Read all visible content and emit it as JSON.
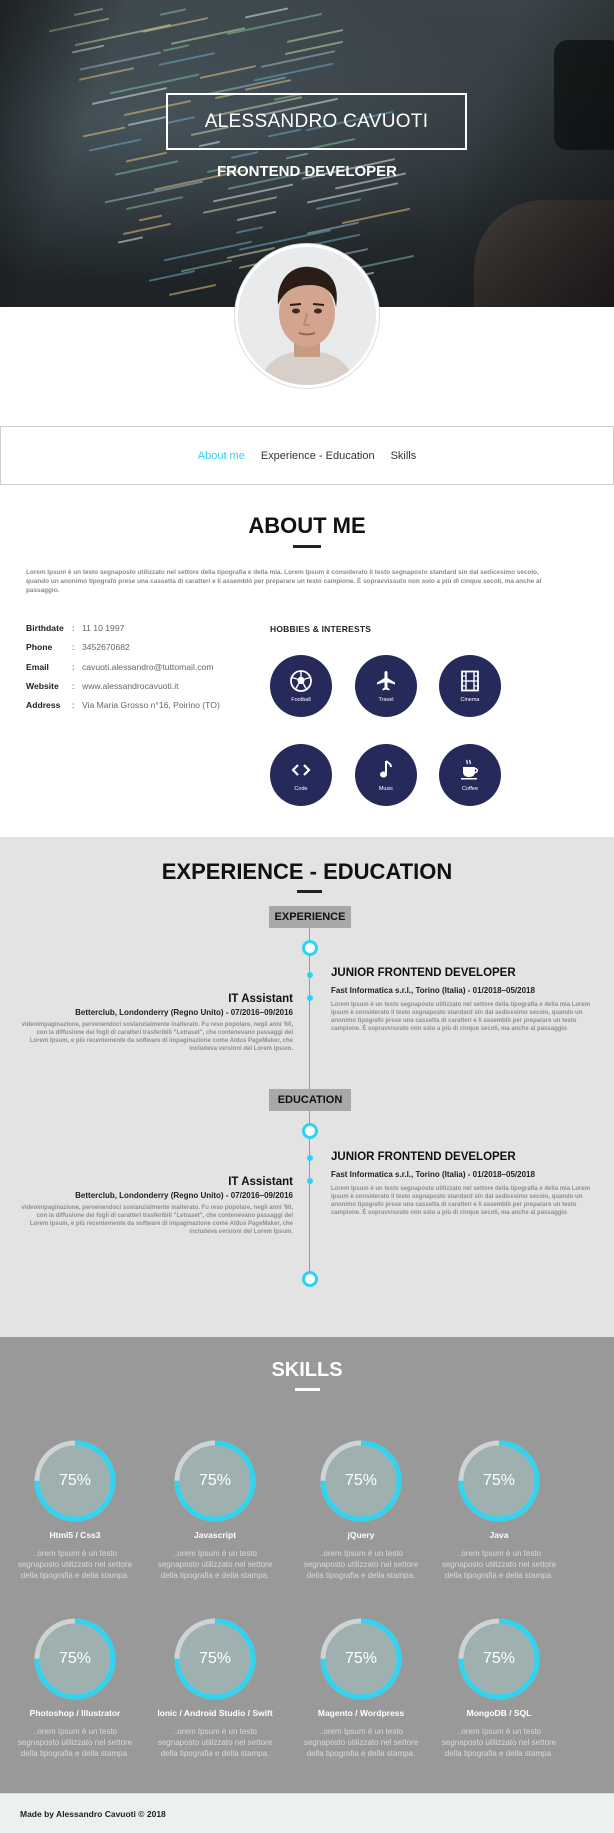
{
  "header": {
    "name": "ALESSANDRO CAVUOTI",
    "role": "FRONTEND DEVELOPER"
  },
  "nav": {
    "items": [
      "About me",
      "Experience - Education",
      "Skills"
    ],
    "active": "About me",
    "active_color": "#2fd4f0"
  },
  "about": {
    "title": "ABOUT ME",
    "text": "Lorem Ipsum è un testo segnaposto utilizzato nel settore della tipografia e della mia. Lorem Ipsum è considerato il testo segnaposto standard sin dal sedicesimo secolo, quando un anonimo tipografo prese una cassetta di caratteri e li assemblò per preparare un testo campione. È sopravvissuto non solo a più di cinque secoli, ma anche al passaggio.",
    "info": [
      {
        "label": "Birthdate",
        "value": "11 10 1997"
      },
      {
        "label": "Phone",
        "value": "3452670682"
      },
      {
        "label": "Email",
        "value": "cavuoti.alessandro@tuttomail.com"
      },
      {
        "label": "Website",
        "value": "www.alessandrocavuoti.it"
      },
      {
        "label": "Address",
        "value": "Via Maria Grosso n°16, Poirino (TO)"
      }
    ],
    "separator": ":",
    "hobbies_title": "HOBBIES & INTERESTS",
    "hobbies": [
      {
        "label": "Football",
        "icon": "football-icon"
      },
      {
        "label": "Travel",
        "icon": "airplane-icon"
      },
      {
        "label": "Cinema",
        "icon": "film-icon"
      },
      {
        "label": "Code",
        "icon": "code-icon"
      },
      {
        "label": "Music",
        "icon": "music-note-icon"
      },
      {
        "label": "Coffee",
        "icon": "coffee-cup-icon"
      }
    ],
    "hobby_color": "#262a5b"
  },
  "experience": {
    "title": "EXPERIENCE - EDUCATION",
    "experience_label": "EXPERIENCE",
    "education_label": "EDUCATION",
    "accent": "#29d5f2",
    "right_jobs": [
      {
        "title": "JUNIOR FRONTEND DEVELOPER",
        "subtitle": "Fast Informatica s.r.l., Torino (Italia) - 01/2018–05/2018",
        "text": "Lorem Ipsum è un testo segnaposto utilizzato nel settore della tipografia e della mia Lorem Ipsum è considerato il testo segnaposto standard sin dal sedicesimo secolo, quando un anonimo tipografo prese una cassetta di caratteri e li assemblò per preparare un testo campione. È sopravvissuto non solo a più di cinque secoli, ma anche al passaggio"
      },
      {
        "title": "JUNIOR FRONTEND DEVELOPER",
        "subtitle": "Fast Informatica s.r.l., Torino (Italia) - 01/2018–05/2018",
        "text": "Lorem Ipsum è un testo segnaposto utilizzato nel settore della tipografia e della mia Lorem Ipsum è considerato il testo segnaposto standard sin dal sedicesimo secolo, quando un anonimo tipografo prese una cassetta di caratteri e li assemblò per preparare un testo campione. È sopravvissuto non solo a più di cinque secoli, ma anche al passaggio"
      }
    ],
    "left_jobs": [
      {
        "title": "IT Assistant",
        "subtitle": "Betterclub, Londonderry (Regno Unito) - 07/2016–09/2016",
        "text": "videoimpaginazione, pervenendoci sostanzialmente inalterato. Fu reso popolare, negli anni '60, con la diffusione dei fogli di caratteri trasferibili \"Letraset\", che contenevano passaggi del Lorem Ipsum, e più recentemente da software di impaginazione come Aldus PageMaker, che includeva versioni del Lorem Ipsum."
      },
      {
        "title": "IT Assistant",
        "subtitle": "Betterclub, Londonderry (Regno Unito) - 07/2016–09/2016",
        "text": "videoimpaginazione, pervenendoci sostanzialmente inalterato. Fu reso popolare, negli anni '60, con la diffusione dei fogli di caratteri trasferibili \"Letraset\", che contenevano passaggi del Lorem Ipsum, e più recentemente da software di impaginazione come Aldus PageMaker, che includeva versioni del Lorem Ipsum."
      }
    ]
  },
  "skills": {
    "title": "SKILLS",
    "ring_color": "#2fd4f0",
    "ring_track": "#cfd3d3",
    "inner_color": "#9fb0b0",
    "items": [
      {
        "name": "Html5 / Css3",
        "percent_label": "75%",
        "level": 0.75,
        "text": "..orem Ipsum è un testo segnaposto utilizzato nel settore della tipografia e della stampa."
      },
      {
        "name": "Javascript",
        "percent_label": "75%",
        "level": 0.75,
        "text": "..orem Ipsum è un testo segnaposto utilizzato nel settore della tipografia e della stampa."
      },
      {
        "name": "jQuery",
        "percent_label": "75%",
        "level": 0.75,
        "text": "..orem Ipsum è un testo segnaposto utilizzato nel settore della tipografia e della stampa."
      },
      {
        "name": "Java",
        "percent_label": "75%",
        "level": 0.75,
        "text": "..orem Ipsum è un testo segnaposto utilizzato nel settore della tipografia e della stampa."
      },
      {
        "name": "Photoshop / Illustrator",
        "percent_label": "75%",
        "level": 0.75,
        "text": "..orem Ipsum è un testo segnaposto utilizzato nel settore della tipografia e della stampa."
      },
      {
        "name": "Ionic / Android Studio / Swift",
        "percent_label": "75%",
        "level": 0.75,
        "text": "..orem Ipsum è un testo segnaposto utilizzato nel settore della tipografia e della stampa."
      },
      {
        "name": "Magento / Wordpress",
        "percent_label": "75%",
        "level": 0.75,
        "text": "..orem Ipsum è un testo segnaposto utilizzato nel settore della tipografia e della stampa."
      },
      {
        "name": "MongoDB / SQL",
        "percent_label": "75%",
        "level": 0.75,
        "text": "..orem Ipsum è un testo segnaposto utilizzato nel settore della tipografia e della stampa."
      }
    ]
  },
  "footer": {
    "text": "Made by Alessandro Cavuoti © 2018"
  }
}
